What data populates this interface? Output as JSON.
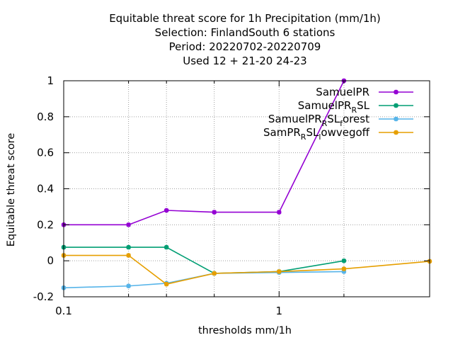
{
  "chart_data": {
    "type": "line",
    "title_lines": [
      "Equitable threat score  for 1h Precipitation (mm/1h)",
      "Selection: FinlandSouth      6 stations",
      "Period: 20220702-20220709",
      "Used  12 + 21-20 24-23"
    ],
    "xlabel": "thresholds mm/1h",
    "ylabel": "Equitable threat score",
    "x_scale": "log",
    "xlim": [
      0.1,
      5
    ],
    "ylim": [
      -0.2,
      1
    ],
    "x_ticks": [
      {
        "value": 0.1,
        "label": "0.1"
      },
      {
        "value": 1,
        "label": "1"
      }
    ],
    "x_grid_values": [
      0.1,
      0.2,
      0.3,
      0.5,
      1,
      2,
      5
    ],
    "y_ticks": [
      {
        "value": -0.2,
        "label": "-0.2"
      },
      {
        "value": 0,
        "label": "0"
      },
      {
        "value": 0.2,
        "label": "0.2"
      },
      {
        "value": 0.4,
        "label": "0.4"
      },
      {
        "value": 0.6,
        "label": "0.6"
      },
      {
        "value": 0.8,
        "label": "0.8"
      },
      {
        "value": 1,
        "label": "1"
      }
    ],
    "grid": true,
    "legend_position": "top-right",
    "series": [
      {
        "name": "SamuelPR",
        "legend_parts": [
          {
            "t": "SamuelPR",
            "sub": false
          }
        ],
        "color": "#9400d3",
        "x": [
          0.1,
          0.2,
          0.3,
          0.5,
          1,
          2
        ],
        "y": [
          0.2,
          0.2,
          0.28,
          0.27,
          0.27,
          1.0
        ]
      },
      {
        "name": "SamuelPR_RSL",
        "legend_parts": [
          {
            "t": "SamuelPR",
            "sub": false
          },
          {
            "t": "R",
            "sub": true
          },
          {
            "t": "SL",
            "sub": false
          }
        ],
        "color": "#009e73",
        "x": [
          0.1,
          0.2,
          0.3,
          0.5,
          1,
          2
        ],
        "y": [
          0.075,
          0.075,
          0.075,
          -0.07,
          -0.06,
          0.0
        ]
      },
      {
        "name": "SamuelPR_RSL_forest",
        "legend_parts": [
          {
            "t": "SamuelPR",
            "sub": false
          },
          {
            "t": "R",
            "sub": true
          },
          {
            "t": "SL",
            "sub": false
          },
          {
            "t": "f",
            "sub": true
          },
          {
            "t": "orest",
            "sub": false
          }
        ],
        "color": "#56b4e9",
        "x": [
          0.1,
          0.2,
          0.3,
          0.5,
          1,
          2
        ],
        "y": [
          -0.15,
          -0.14,
          -0.125,
          -0.07,
          -0.065,
          -0.06
        ]
      },
      {
        "name": "SamPR_RSL_lowvegoff",
        "legend_parts": [
          {
            "t": "SamPR",
            "sub": false
          },
          {
            "t": "R",
            "sub": true
          },
          {
            "t": "SL",
            "sub": false
          },
          {
            "t": "l",
            "sub": true
          },
          {
            "t": "owvegoff",
            "sub": false
          }
        ],
        "color": "#e69f00",
        "x": [
          0.1,
          0.2,
          0.3,
          0.5,
          1,
          2,
          5
        ],
        "y": [
          0.03,
          0.03,
          -0.13,
          -0.07,
          -0.06,
          -0.045,
          -0.003
        ]
      }
    ]
  }
}
